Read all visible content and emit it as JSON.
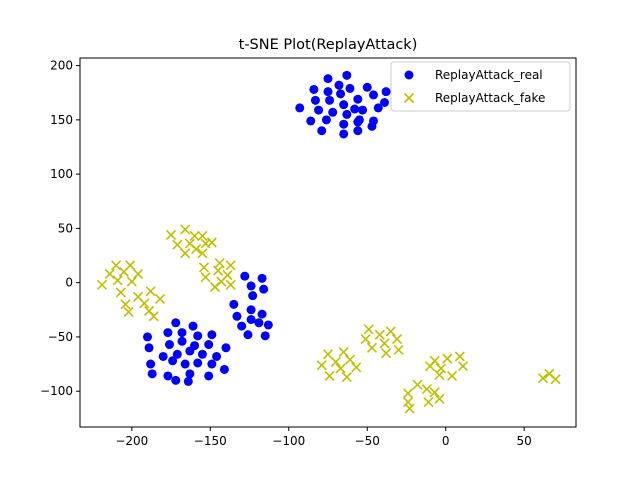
{
  "chart_data": {
    "type": "scatter",
    "title": "t-SNE Plot(ReplayAttack)",
    "xlabel": "",
    "ylabel": "",
    "xlim": [
      -233,
      83
    ],
    "ylim": [
      -133,
      207
    ],
    "xticks": [
      -200,
      -150,
      -100,
      -50,
      0,
      50
    ],
    "yticks": [
      -100,
      -50,
      0,
      50,
      100,
      150,
      200
    ],
    "xtick_labels": [
      "−200",
      "−150",
      "−100",
      "−50",
      "0",
      "50"
    ],
    "ytick_labels": [
      "−100",
      "−50",
      "0",
      "50",
      "100",
      "150",
      "200"
    ],
    "grid": false,
    "legend_position": "top-right",
    "series": [
      {
        "name": "ReplayAttack_real",
        "marker": "circle",
        "color": "#0000ff",
        "points": [
          [
            -75,
            188
          ],
          [
            -63,
            191
          ],
          [
            -68,
            182
          ],
          [
            -84,
            178
          ],
          [
            -75,
            176
          ],
          [
            -61,
            179
          ],
          [
            -50,
            180
          ],
          [
            -83,
            168
          ],
          [
            -74,
            168
          ],
          [
            -65,
            164
          ],
          [
            -56,
            169
          ],
          [
            -46,
            173
          ],
          [
            -38,
            176
          ],
          [
            -93,
            161
          ],
          [
            -81,
            159
          ],
          [
            -72,
            157
          ],
          [
            -63,
            155
          ],
          [
            -53,
            159
          ],
          [
            -43,
            161
          ],
          [
            -39,
            166
          ],
          [
            -86,
            149
          ],
          [
            -76,
            150
          ],
          [
            -65,
            146
          ],
          [
            -56,
            148
          ],
          [
            -46,
            149
          ],
          [
            -79,
            140
          ],
          [
            -65,
            137
          ],
          [
            -56,
            140
          ],
          [
            -47,
            144
          ],
          [
            -67,
            174
          ],
          [
            -58,
            160
          ],
          [
            -55,
            150
          ],
          [
            -128,
            6
          ],
          [
            -117,
            4
          ],
          [
            -124,
            -3
          ],
          [
            -116,
            -6
          ],
          [
            -123,
            -12
          ],
          [
            -135,
            -20
          ],
          [
            -124,
            -25
          ],
          [
            -133,
            -31
          ],
          [
            -124,
            -34
          ],
          [
            -117,
            -29
          ],
          [
            -130,
            -40
          ],
          [
            -119,
            -37
          ],
          [
            -113,
            -39
          ],
          [
            -126,
            -48
          ],
          [
            -115,
            -49
          ],
          [
            -172,
            -37
          ],
          [
            -161,
            -40
          ],
          [
            -177,
            -46
          ],
          [
            -168,
            -46
          ],
          [
            -158,
            -49
          ],
          [
            -149,
            -48
          ],
          [
            -190,
            -50
          ],
          [
            -176,
            -57
          ],
          [
            -168,
            -54
          ],
          [
            -160,
            -58
          ],
          [
            -151,
            -57
          ],
          [
            -140,
            -60
          ],
          [
            -189,
            -60
          ],
          [
            -180,
            -68
          ],
          [
            -171,
            -66
          ],
          [
            -163,
            -63
          ],
          [
            -155,
            -66
          ],
          [
            -146,
            -68
          ],
          [
            -188,
            -75
          ],
          [
            -174,
            -72
          ],
          [
            -166,
            -75
          ],
          [
            -158,
            -74
          ],
          [
            -149,
            -75
          ],
          [
            -141,
            -80
          ],
          [
            -187,
            -84
          ],
          [
            -177,
            -86
          ],
          [
            -163,
            -84
          ],
          [
            -151,
            -86
          ],
          [
            -172,
            -90
          ],
          [
            -164,
            -91
          ]
        ]
      },
      {
        "name": "ReplayAttack_fake",
        "marker": "x",
        "color": "#bfbf00",
        "points": [
          [
            -166,
            49
          ],
          [
            -160,
            43
          ],
          [
            -175,
            44
          ],
          [
            -171,
            35
          ],
          [
            -163,
            36
          ],
          [
            -153,
            36
          ],
          [
            -166,
            27
          ],
          [
            -159,
            31
          ],
          [
            -155,
            27
          ],
          [
            -155,
            43
          ],
          [
            -149,
            37
          ],
          [
            -144,
            18
          ],
          [
            -137,
            16
          ],
          [
            -154,
            14
          ],
          [
            -145,
            11
          ],
          [
            -139,
            7
          ],
          [
            -153,
            5
          ],
          [
            -143,
            1
          ],
          [
            -137,
            -2
          ],
          [
            -147,
            -4
          ],
          [
            -210,
            16
          ],
          [
            -201,
            16
          ],
          [
            -214,
            8
          ],
          [
            -205,
            10
          ],
          [
            -196,
            8
          ],
          [
            -209,
            2
          ],
          [
            -200,
            1
          ],
          [
            -219,
            -2
          ],
          [
            -207,
            -9
          ],
          [
            -196,
            -13
          ],
          [
            -188,
            -8
          ],
          [
            -204,
            -20
          ],
          [
            -192,
            -19
          ],
          [
            -182,
            -15
          ],
          [
            -202,
            -27
          ],
          [
            -189,
            -26
          ],
          [
            -186,
            -31
          ],
          [
            -75,
            -66
          ],
          [
            -65,
            -64
          ],
          [
            -79,
            -76
          ],
          [
            -70,
            -73
          ],
          [
            -61,
            -71
          ],
          [
            -74,
            -86
          ],
          [
            -67,
            -79
          ],
          [
            -63,
            -87
          ],
          [
            -57,
            -78
          ],
          [
            -49,
            -43
          ],
          [
            -42,
            -48
          ],
          [
            -35,
            -45
          ],
          [
            -51,
            -52
          ],
          [
            -39,
            -56
          ],
          [
            -31,
            -52
          ],
          [
            -47,
            -60
          ],
          [
            -38,
            -65
          ],
          [
            -30,
            -62
          ],
          [
            -18,
            -94
          ],
          [
            -24,
            -102
          ],
          [
            -12,
            -98
          ],
          [
            -7,
            -101
          ],
          [
            -24,
            -110
          ],
          [
            -11,
            -110
          ],
          [
            -4,
            -107
          ],
          [
            -23,
            -116
          ],
          [
            -10,
            -77
          ],
          [
            -7,
            -72
          ],
          [
            1,
            -70
          ],
          [
            9,
            -68
          ],
          [
            11,
            -77
          ],
          [
            -3,
            -79
          ],
          [
            4,
            -86
          ],
          [
            -4,
            -85
          ],
          [
            62,
            -88
          ],
          [
            66,
            -84
          ],
          [
            70,
            -89
          ]
        ]
      }
    ]
  }
}
